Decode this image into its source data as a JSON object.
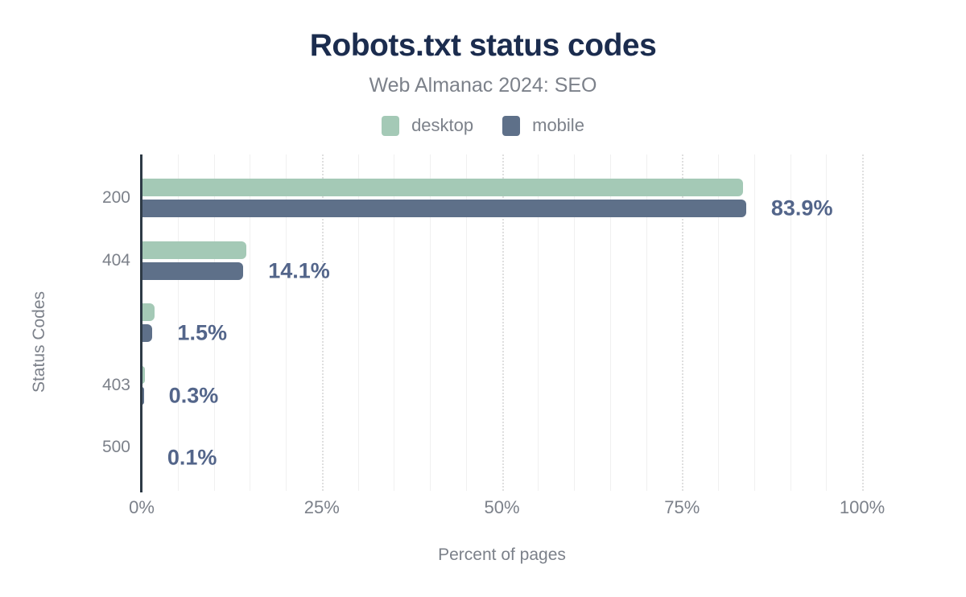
{
  "chart_data": {
    "type": "bar",
    "orientation": "horizontal",
    "title": "Robots.txt status codes",
    "subtitle": "Web Almanac 2024: SEO",
    "xlabel": "Percent of pages",
    "ylabel": "Status Codes",
    "categories": [
      "200",
      "404",
      "",
      "403",
      "500"
    ],
    "series": [
      {
        "name": "desktop",
        "color": "#a4c9b6",
        "values": [
          83.5,
          14.5,
          1.8,
          0.4,
          0.1
        ]
      },
      {
        "name": "mobile",
        "color": "#5e7089",
        "values": [
          83.9,
          14.1,
          1.5,
          0.3,
          0.1
        ]
      }
    ],
    "value_labels": [
      "83.9%",
      "14.1%",
      "1.5%",
      "0.3%",
      "0.1%"
    ],
    "value_labels_refer_to": "mobile",
    "x_ticks": [
      {
        "value": 0,
        "label": "0%"
      },
      {
        "value": 25,
        "label": "25%"
      },
      {
        "value": 50,
        "label": "50%"
      },
      {
        "value": 75,
        "label": "75%"
      },
      {
        "value": 100,
        "label": "100%"
      }
    ],
    "xlim": [
      0,
      100
    ],
    "grid": {
      "minor_step_pct": 5,
      "major_step_pct": 25
    },
    "legend_position": "top"
  },
  "colors": {
    "title": "#1b2c4e",
    "muted_text": "#7c818a",
    "value_label": "#53658a",
    "axis_line": "#2e3a46",
    "grid_minor": "#f0f0f0",
    "grid_major": "#dfdfdf",
    "background": "#ffffff",
    "desktop_bar": "#a4c9b6",
    "mobile_bar": "#5e7089"
  }
}
